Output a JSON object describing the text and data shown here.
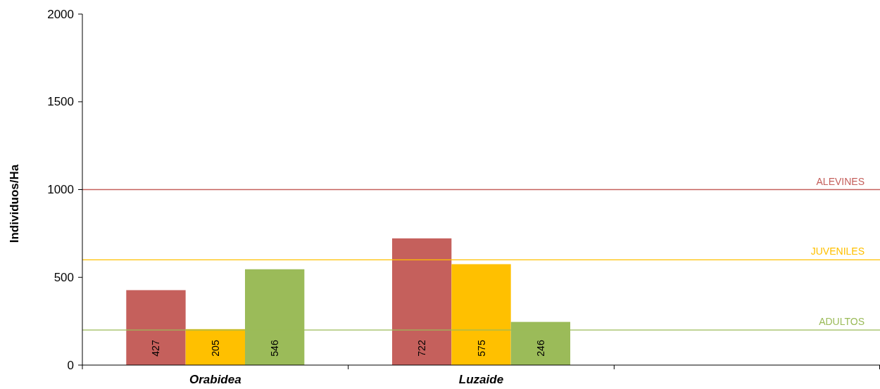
{
  "chart_data": {
    "type": "bar",
    "ylabel": "Individuos/Ha",
    "categories": [
      "Orabidea",
      "Luzaide",
      null
    ],
    "series": [
      {
        "color": "#c5605c",
        "values": [
          427,
          722,
          null
        ]
      },
      {
        "color": "#ffc000",
        "values": [
          205,
          575,
          null
        ]
      },
      {
        "color": "#9bbb59",
        "values": [
          546,
          246,
          null
        ]
      }
    ],
    "ylim": [
      0,
      2000
    ],
    "yticks": [
      0,
      500,
      1000,
      1500,
      2000
    ],
    "data_labels": true,
    "grid": false,
    "ref_lines": [
      {
        "axis": "y",
        "value": 1000,
        "label": "ALEVINES",
        "color": "#c5605c"
      },
      {
        "axis": "y",
        "value": 600,
        "label": "JUVENILES",
        "color": "#ffc000"
      },
      {
        "axis": "y",
        "value": 200,
        "label": "ADULTOS",
        "color": "#9bbb59"
      }
    ]
  }
}
